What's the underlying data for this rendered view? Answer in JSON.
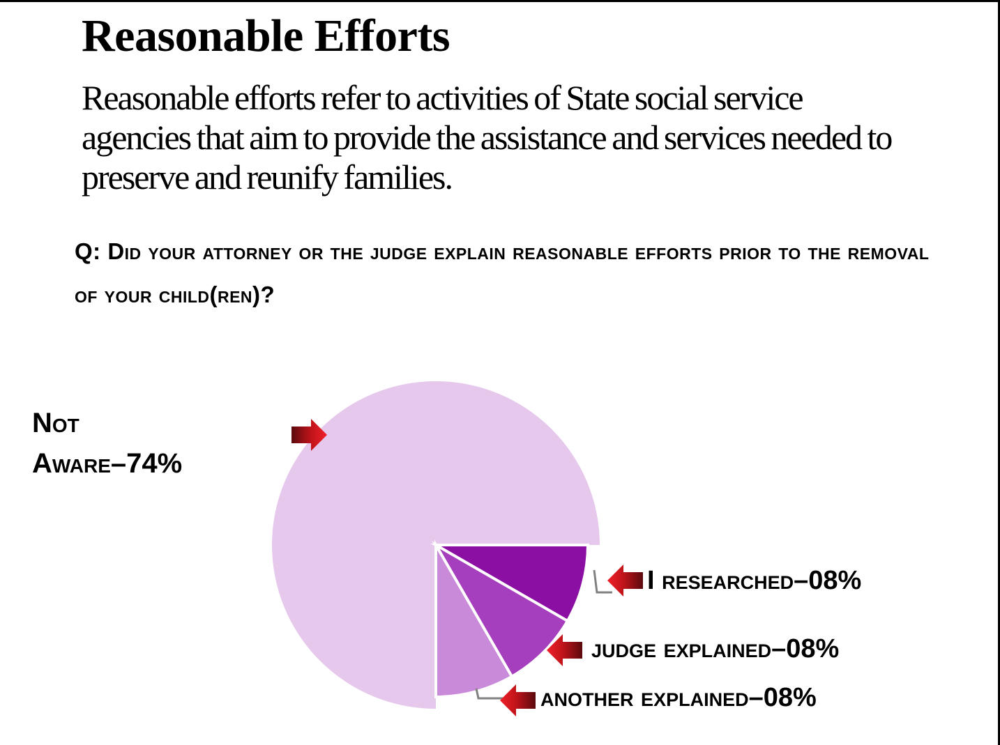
{
  "header": {
    "title": "Reasonable Efforts",
    "definition": "Reasonable efforts refer to activities of State social service agencies that aim to provide the assistance and services needed to preserve and reunify families.",
    "question": "Q: Did your attorney or the judge explain reasonable efforts prior to the removal of your child(ren)?"
  },
  "chart_data": {
    "type": "pie",
    "title": "",
    "slices": [
      {
        "label_line1": "Not",
        "label_line2": "Aware–74%",
        "value": 74,
        "color": "#E6C8EC"
      },
      {
        "label": "I researched–08%",
        "value": 8,
        "color": "#8B0FA3"
      },
      {
        "label": "judge explained–08%",
        "value": 8,
        "color": "#A63FBE"
      },
      {
        "label": "another explained–08%",
        "value": 8,
        "color": "#C98AD9"
      }
    ],
    "colors": {
      "arrow": "#D9141B",
      "arrow_dark": "#6E0B10",
      "leader": "#808080"
    }
  }
}
